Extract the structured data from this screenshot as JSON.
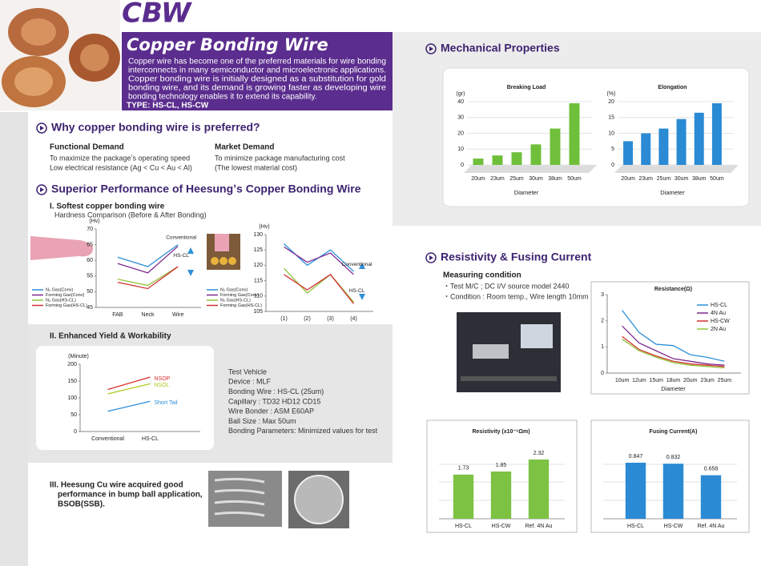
{
  "header": {
    "logo": "CBW",
    "title": "Copper Bonding Wire",
    "description": [
      "Copper wire has become one of the preferred materials for wire bonding",
      "interconnects in many semiconductor and microelectronic applications.",
      "Copper bonding wire is initially designed as a substitution for gold",
      "bonding wire, and its demand is growing faster as developing wire",
      "bonding technology enables it to extend its capability."
    ],
    "type": "TYPE: HS-CL, HS-CW"
  },
  "why": {
    "heading": "Why copper bonding wire is preferred?",
    "functional": {
      "title": "Functional Demand",
      "lines": [
        "To maximize the packageʼs operating speed",
        "Low electrical resistance (Ag < Cu < Au < Al)"
      ]
    },
    "market": {
      "title": "Market Demand",
      "lines": [
        "To minimize package manufacturing cost",
        "(The lowest material cost)"
      ]
    }
  },
  "performance": {
    "heading": "Superior Performance of Heesungʼs Copper Bonding Wire",
    "softest": {
      "title": "I. Softest copper bonding wire",
      "subtitle": "Hardness Comparison (Before & After Bonding)"
    },
    "yield": {
      "title": "II. Enhanced Yield & Workability",
      "test_vehicle": [
        "Test Vehicle",
        "Device : MLF",
        "Bonding Wire : HS-CL (25um)",
        "Capillary : TD32 HD12 CD15",
        "Wire Bonder : ASM E60AP",
        "Ball Size : Max 50um",
        "Bonding Parameters: Minimized values for test"
      ]
    },
    "bump": {
      "title": [
        "III. Heesung Cu wire acquired good",
        "performance in bump ball application,",
        "BSOB(SSB)."
      ]
    }
  },
  "mechanical": {
    "heading": "Mechanical Properties"
  },
  "resistivity": {
    "heading": "Resistivity & Fusing Current",
    "measuring": {
      "title": "Measuring condition",
      "lines": [
        "・Test M/C ; DC I/V source model 2440",
        "・Condition : Room temp., Wire length 10mm"
      ]
    }
  },
  "chart_data": [
    {
      "type": "bar",
      "title": "Breaking Load",
      "ylabel": "(gr)",
      "xlabel": "Diameter",
      "categories": [
        "20um",
        "23um",
        "25um",
        "30um",
        "38um",
        "50um"
      ],
      "values": [
        4,
        6,
        8,
        13,
        23,
        39
      ],
      "color": "#6fbf3a",
      "ylim": [
        0,
        40
      ],
      "yticks": [
        0,
        10,
        20,
        30,
        40
      ],
      "grid": true
    },
    {
      "type": "bar",
      "title": "Elongation",
      "ylabel": "(%)",
      "xlabel": "Diameter",
      "categories": [
        "20um",
        "23um",
        "25um",
        "30um",
        "38um",
        "50um"
      ],
      "values": [
        7.5,
        10,
        11.5,
        14.5,
        16.5,
        19.5
      ],
      "color": "#2a8ad4",
      "ylim": [
        0,
        20
      ],
      "yticks": [
        0,
        5,
        10,
        15,
        20
      ],
      "grid": true
    },
    {
      "type": "line",
      "ylabel": "(Hv)",
      "categories": [
        "FAB",
        "Neck",
        "Wire"
      ],
      "series": [
        {
          "name": "N₂ Gas(Conv)",
          "color": "#2e8fd8",
          "values": [
            61,
            58,
            65
          ]
        },
        {
          "name": "Forming Gas(Conv)",
          "color": "#7b2b8f",
          "values": [
            59,
            56,
            64.5
          ]
        },
        {
          "name": "N₂ Gas(HS-CL)",
          "color": "#8fc43a",
          "values": [
            54,
            52,
            58
          ]
        },
        {
          "name": "Forming Gas(HS-CL)",
          "color": "#d2302f",
          "values": [
            53,
            51,
            58
          ]
        }
      ],
      "ylim": [
        45,
        70
      ],
      "yticks": [
        45,
        50,
        55,
        60,
        65,
        70
      ],
      "legend": "left",
      "annotations": [
        "Conventional",
        "HS-CL"
      ]
    },
    {
      "type": "line",
      "ylabel": "(Hv)",
      "categories": [
        "(1)",
        "(2)",
        "(3)",
        "(4)"
      ],
      "series": [
        {
          "name": "N₂ Gas(Conv)",
          "color": "#2e8fd8",
          "values": [
            127,
            120,
            125,
            118
          ]
        },
        {
          "name": "Forming Gas(Conv)",
          "color": "#7b2b8f",
          "values": [
            126,
            121,
            124,
            117
          ]
        },
        {
          "name": "N₂ Gas(HS-CL)",
          "color": "#8fc43a",
          "values": [
            119,
            111,
            117,
            108
          ]
        },
        {
          "name": "Forming Gas(HS-CL)",
          "color": "#d2302f",
          "values": [
            117,
            112,
            117,
            107.5
          ]
        }
      ],
      "ylim": [
        105,
        130
      ],
      "yticks": [
        105,
        110,
        115,
        120,
        125,
        130
      ],
      "legend": "left",
      "annotations": [
        "Conventional",
        "HS-CL"
      ]
    },
    {
      "type": "line",
      "ylabel": "(Minute)",
      "categories": [
        "Conventional",
        "HS-CL"
      ],
      "series": [
        {
          "name": "NSOP",
          "color": "#d9302e",
          "values": [
            125,
            162
          ]
        },
        {
          "name": "NSOL",
          "color": "#b5c81e",
          "values": [
            112,
            142
          ]
        },
        {
          "name": "Short Tail",
          "color": "#2e8fd8",
          "values": [
            60,
            90
          ]
        }
      ],
      "ylim": [
        0,
        200
      ],
      "yticks": [
        0,
        50,
        100,
        150,
        200
      ],
      "legend": "inline"
    },
    {
      "type": "line",
      "title": "Resistance(Ω)",
      "xlabel": "Diameter",
      "categories": [
        "10um",
        "12um",
        "15um",
        "18um",
        "20um",
        "23um",
        "25um"
      ],
      "series": [
        {
          "name": "HS-CL",
          "color": "#2e8fd8",
          "values": [
            2.4,
            1.55,
            1.1,
            1.05,
            0.7,
            0.6,
            0.45
          ]
        },
        {
          "name": "4N Au",
          "color": "#7b2b8f",
          "values": [
            1.8,
            1.15,
            0.85,
            0.55,
            0.45,
            0.35,
            0.3
          ]
        },
        {
          "name": "HS-CW",
          "color": "#d2302f",
          "values": [
            1.4,
            0.9,
            0.65,
            0.45,
            0.35,
            0.3,
            0.25
          ]
        },
        {
          "name": "2N Au",
          "color": "#8fc43a",
          "values": [
            1.3,
            0.85,
            0.6,
            0.4,
            0.3,
            0.25,
            0.2
          ]
        }
      ],
      "ylim": [
        0,
        3
      ],
      "yticks": [
        0,
        1,
        2,
        3
      ],
      "legend": "upper right"
    },
    {
      "type": "bar",
      "title": "Resistivity (x10⁻⁶Ωm)",
      "categories": [
        "HS-CL",
        "HS-CW",
        "Ref. 4N Au"
      ],
      "values": [
        1.73,
        1.85,
        2.32
      ],
      "color": "#7dc242",
      "data_labels": true
    },
    {
      "type": "bar",
      "title": "Fusing Current(A)",
      "categories": [
        "HS-CL",
        "HS-CW",
        "Ref. 4N Au"
      ],
      "values": [
        0.847,
        0.832,
        0.658
      ],
      "color": "#2a8ad4",
      "data_labels": true
    }
  ]
}
